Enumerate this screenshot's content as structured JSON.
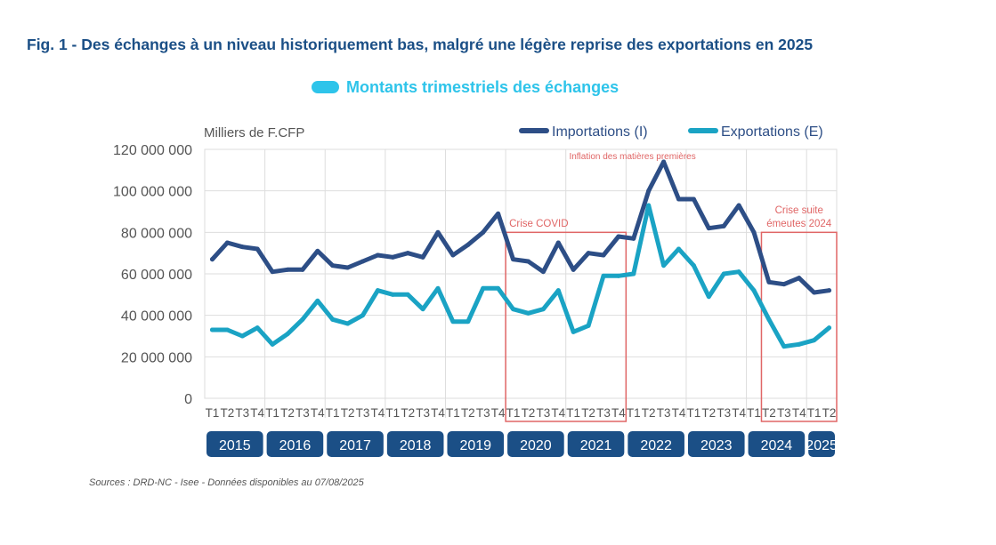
{
  "header": {
    "title": "Fig. 1 - Des échanges à un niveau historiquement bas, malgré une légère reprise des exportations en 2025",
    "subtitle": "Montants trimestriels des échanges"
  },
  "footer": {
    "source": "Sources : DRD-NC - Isee - Données disponibles au 07/08/2025"
  },
  "colors": {
    "imports": "#2d4e86",
    "exports": "#1aa3c4",
    "grid": "#dddddd",
    "year_badge": "#1b4f86",
    "annotation": "#e06666",
    "subtitle": "#2ec4ea"
  },
  "chart_data": {
    "type": "line",
    "title": "Fig. 1 - Des échanges à un niveau historiquement bas, malgré une légère reprise des exportations en 2025",
    "subtitle": "Montants trimestriels des échanges",
    "ylabel": "Milliers de F.CFP",
    "xlabel": "",
    "ylim": [
      0,
      120000000
    ],
    "yticks": [
      "0",
      "20 000 000",
      "40 000 000",
      "60 000 000",
      "80 000 000",
      "100 000 000",
      "120 000 000"
    ],
    "grid": true,
    "legend_position": "top-right",
    "years": [
      {
        "label": "2015",
        "quarters": 4
      },
      {
        "label": "2016",
        "quarters": 4
      },
      {
        "label": "2017",
        "quarters": 4
      },
      {
        "label": "2018",
        "quarters": 4
      },
      {
        "label": "2019",
        "quarters": 4
      },
      {
        "label": "2020",
        "quarters": 4
      },
      {
        "label": "2021",
        "quarters": 4
      },
      {
        "label": "2022",
        "quarters": 4
      },
      {
        "label": "2023",
        "quarters": 4
      },
      {
        "label": "2024",
        "quarters": 4
      },
      {
        "label": "2025",
        "quarters": 2
      }
    ],
    "quarter_labels": [
      "T1",
      "T2",
      "T3",
      "T4",
      "T1",
      "T2",
      "T3",
      "T4",
      "T1",
      "T2",
      "T3",
      "T4",
      "T1",
      "T2",
      "T3",
      "T4",
      "T1",
      "T2",
      "T3",
      "T4",
      "T1",
      "T2",
      "T3",
      "T4",
      "T1",
      "T2",
      "T3",
      "T4",
      "T1",
      "T2",
      "T3",
      "T4",
      "T1",
      "T2",
      "T3",
      "T4",
      "T1",
      "T2",
      "T3",
      "T4",
      "T1",
      "T2"
    ],
    "series": [
      {
        "name": "Importations (I)",
        "values": [
          67000000,
          75000000,
          73000000,
          72000000,
          61000000,
          62000000,
          62000000,
          71000000,
          64000000,
          63000000,
          66000000,
          69000000,
          68000000,
          70000000,
          68000000,
          80000000,
          69000000,
          74000000,
          80000000,
          89000000,
          67000000,
          66000000,
          61000000,
          75000000,
          62000000,
          70000000,
          69000000,
          78000000,
          77000000,
          100000000,
          114000000,
          96000000,
          96000000,
          82000000,
          83000000,
          93000000,
          80000000,
          56000000,
          55000000,
          58000000,
          51000000,
          52000000
        ]
      },
      {
        "name": "Exportations (E)",
        "values": [
          33000000,
          33000000,
          30000000,
          34000000,
          26000000,
          31000000,
          38000000,
          47000000,
          38000000,
          36000000,
          40000000,
          52000000,
          50000000,
          50000000,
          43000000,
          53000000,
          37000000,
          37000000,
          53000000,
          53000000,
          43000000,
          41000000,
          43000000,
          52000000,
          32000000,
          35000000,
          59000000,
          59000000,
          60000000,
          93000000,
          64000000,
          72000000,
          64000000,
          49000000,
          60000000,
          61000000,
          52000000,
          38000000,
          25000000,
          26000000,
          28000000,
          34000000
        ]
      }
    ],
    "annotations": [
      {
        "text": "Crise COVID",
        "from_index": 20,
        "to_index": 27
      },
      {
        "text": "Inflation des matières premières",
        "at_index": 30
      },
      {
        "text": "Crise suite",
        "text2": "émeutes 2024",
        "from_index": 37,
        "to_index": 41
      }
    ]
  }
}
